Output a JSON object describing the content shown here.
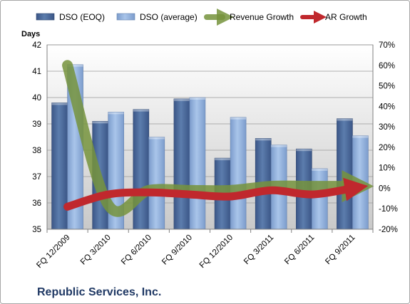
{
  "chart_data": {
    "type": "bar",
    "title": "",
    "company": "Republic Services, Inc.",
    "ylabel": "Days",
    "ylim": [
      35,
      42
    ],
    "y2lim": [
      -20,
      70
    ],
    "y_ticks": [
      "35",
      "36",
      "37",
      "38",
      "39",
      "40",
      "41",
      "42"
    ],
    "y2_ticks": [
      "-20%",
      "-10%",
      "0%",
      "10%",
      "20%",
      "30%",
      "40%",
      "50%",
      "60%",
      "70%"
    ],
    "categories": [
      "FQ 12/2009",
      "FQ 3/2010",
      "FQ 6/2010",
      "FQ 9/2010",
      "FQ 12/2010",
      "FQ 3/2011",
      "FQ 6/2011",
      "FQ 9/2011"
    ],
    "series": [
      {
        "name": "DSO (EOQ)",
        "type": "bar",
        "axis": "left",
        "color": "#4f6f9f",
        "values": [
          39.8,
          39.1,
          39.55,
          39.95,
          37.7,
          38.45,
          38.05,
          39.2
        ]
      },
      {
        "name": "DSO (average)",
        "type": "bar",
        "axis": "left",
        "color": "#93b4dd",
        "values": [
          41.25,
          39.45,
          38.5,
          40.0,
          39.25,
          38.2,
          37.3,
          38.55
        ]
      },
      {
        "name": "Revenue Growth",
        "type": "line",
        "axis": "right",
        "color": "#76933c",
        "values": [
          60,
          -8,
          -1,
          -1,
          -1,
          1,
          1,
          1
        ]
      },
      {
        "name": "AR Growth",
        "type": "line",
        "axis": "right",
        "color": "#c0282d",
        "values": [
          -9,
          -3,
          -2,
          -3,
          -4,
          -1,
          -3,
          0
        ]
      }
    ],
    "grid": true,
    "legend": "top"
  }
}
